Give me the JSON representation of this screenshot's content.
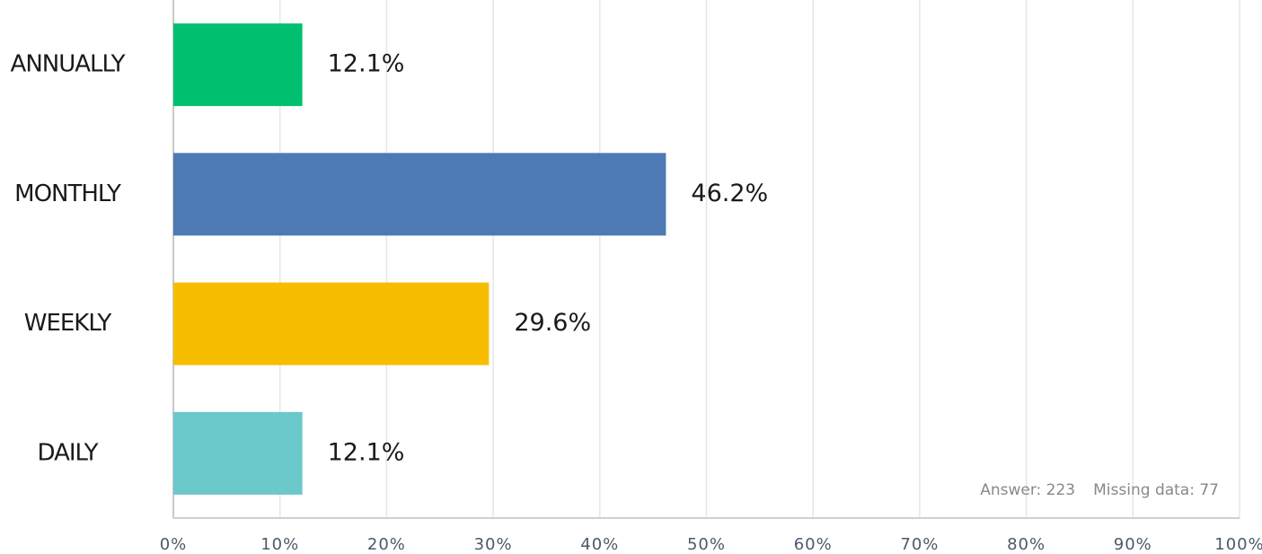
{
  "chart_data": {
    "type": "hbar",
    "categories": [
      "ANNUALLY",
      "MONTHLY",
      "WEEKLY",
      "DAILY"
    ],
    "values": [
      12.1,
      46.2,
      29.6,
      12.1
    ],
    "value_labels": [
      "12.1%",
      "46.2%",
      "29.6%",
      "12.1%"
    ],
    "colors": [
      "#00bf6f",
      "#4d7ab5",
      "#f7bd00",
      "#6bc8cb"
    ],
    "xlim": [
      0,
      100
    ],
    "xticks": [
      {
        "value": 0,
        "label": "0%"
      },
      {
        "value": 10,
        "label": "10%"
      },
      {
        "value": 20,
        "label": "20%"
      },
      {
        "value": 30,
        "label": "30%"
      },
      {
        "value": 40,
        "label": "40%"
      },
      {
        "value": 50,
        "label": "50%"
      },
      {
        "value": 60,
        "label": "60%"
      },
      {
        "value": 70,
        "label": "70%"
      },
      {
        "value": 80,
        "label": "80%"
      },
      {
        "value": 90,
        "label": "90%"
      },
      {
        "value": 100,
        "label": "100%"
      }
    ],
    "grid": true,
    "annotations": [
      "Answer: 223",
      "Missing data: 77"
    ]
  }
}
